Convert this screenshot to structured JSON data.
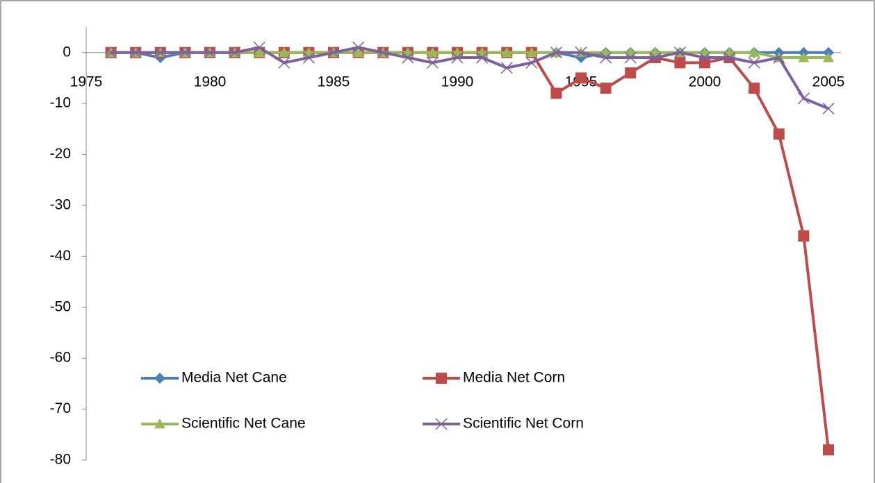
{
  "chart_data": {
    "type": "line",
    "x": [
      1976,
      1977,
      1978,
      1979,
      1980,
      1981,
      1982,
      1983,
      1984,
      1985,
      1986,
      1987,
      1988,
      1989,
      1990,
      1991,
      1992,
      1993,
      1994,
      1995,
      1996,
      1997,
      1998,
      1999,
      2000,
      2001,
      2002,
      2003,
      2004,
      2005
    ],
    "series": [
      {
        "name": "Media Net Cane",
        "color": "#4a7ebb",
        "marker": "diamond",
        "values": [
          0,
          0,
          -1,
          0,
          0,
          0,
          0,
          0,
          0,
          0,
          0,
          0,
          0,
          0,
          0,
          0,
          0,
          0,
          0,
          -1,
          0,
          0,
          0,
          0,
          0,
          0,
          0,
          0,
          0,
          0
        ]
      },
      {
        "name": "Media Net Corn",
        "color": "#be4b48",
        "marker": "square",
        "values": [
          0,
          0,
          0,
          0,
          0,
          0,
          0,
          0,
          0,
          0,
          0,
          0,
          0,
          0,
          0,
          0,
          0,
          0,
          -8,
          -5,
          -7,
          -4,
          -1,
          -2,
          -2,
          -1,
          -7,
          -16,
          -36,
          -78
        ]
      },
      {
        "name": "Scientific Net Cane",
        "color": "#98b954",
        "marker": "triangle",
        "values": [
          0,
          0,
          0,
          0,
          0,
          0,
          0,
          0,
          0,
          0,
          0,
          0,
          0,
          0,
          0,
          0,
          0,
          0,
          0,
          0,
          0,
          0,
          0,
          0,
          0,
          0,
          0,
          -1,
          -1,
          -1
        ]
      },
      {
        "name": "Scientific Net Corn",
        "color": "#7d60a0",
        "marker": "x",
        "values": [
          0,
          0,
          0,
          0,
          0,
          0,
          1,
          -2,
          -1,
          0,
          1,
          0,
          -1,
          -2,
          -1,
          -1,
          -3,
          -2,
          0,
          0,
          -1,
          -1,
          -1,
          0,
          -1,
          -1,
          -2,
          -1,
          -9,
          -11
        ]
      }
    ],
    "xlim": [
      1975,
      2005
    ],
    "xticks": [
      1975,
      1980,
      1985,
      1990,
      1995,
      2000,
      2005
    ],
    "ylim": [
      -80,
      5
    ],
    "yticks": [
      0,
      -10,
      -20,
      -30,
      -40,
      -50,
      -60,
      -70,
      -80
    ]
  }
}
